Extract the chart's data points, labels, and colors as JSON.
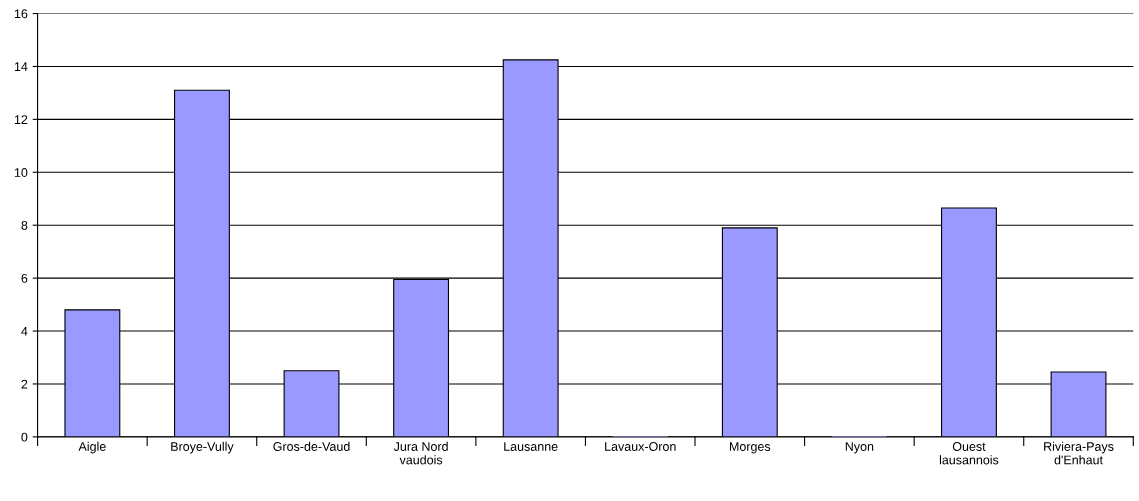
{
  "chart_data": {
    "type": "bar",
    "categories": [
      "Aigle",
      "Broye-Vully",
      "Gros-de-Vaud",
      "Jura Nord\nvaudois",
      "Lausanne",
      "Lavaux-Oron",
      "Morges",
      "Nyon",
      "Ouest\nlausannois",
      "Riviera-Pays\nd'Enhaut"
    ],
    "values": [
      4.8,
      13.1,
      2.5,
      5.95,
      14.25,
      0,
      7.9,
      0,
      8.65,
      2.45
    ],
    "color": "#9999ff",
    "ylim": [
      0,
      16
    ],
    "yticks": [
      0,
      2,
      4,
      6,
      8,
      10,
      12,
      14,
      16
    ],
    "grid": "y",
    "legend": false
  }
}
